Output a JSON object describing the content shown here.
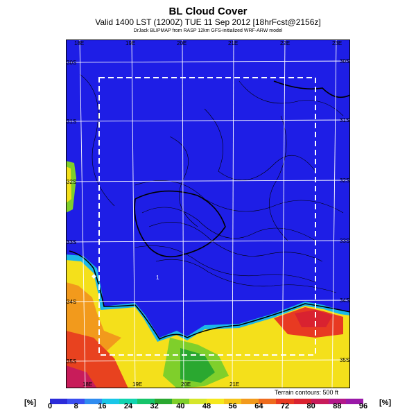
{
  "header": {
    "title": "BL Cloud Cover",
    "subtitle": "Valid 1400 LST (1200Z) TUE 11 Sep 2012 [18hrFcst@2156z]",
    "credit": "DrJack BLIPMAP from RASP 12km GFS-initialized WRF-ARW model"
  },
  "map": {
    "lon_top": [
      "18E",
      "19E",
      "20E",
      "21E",
      "22E",
      "23E"
    ],
    "lon_bottom": [
      "18E",
      "19E",
      "20E",
      "21E"
    ],
    "lat_left": [
      "30S",
      "31S",
      "32S",
      "33S",
      "34S",
      "35S"
    ],
    "lat_right": [
      "30S",
      "31S",
      "32S",
      "33S",
      "34S",
      "35S"
    ],
    "station_marker": "1",
    "terrain_note": "Terrain contours: 500 ft"
  },
  "colorbar": {
    "unit_left": "[%]",
    "unit_right": "[%]",
    "ticks": [
      "0",
      "8",
      "16",
      "24",
      "32",
      "40",
      "48",
      "56",
      "64",
      "72",
      "80",
      "88",
      "96"
    ],
    "colors": [
      "#2b2bd9",
      "#3a4ef0",
      "#2f8cf0",
      "#19c6e8",
      "#12d3b0",
      "#16c46a",
      "#2aa830",
      "#7fcf2b",
      "#d6e62a",
      "#f5e81d",
      "#f4c51b",
      "#f29a1c",
      "#ee6b1e",
      "#e83a22",
      "#d92230",
      "#c81c5a",
      "#b3188a",
      "#9a19a8"
    ]
  }
}
